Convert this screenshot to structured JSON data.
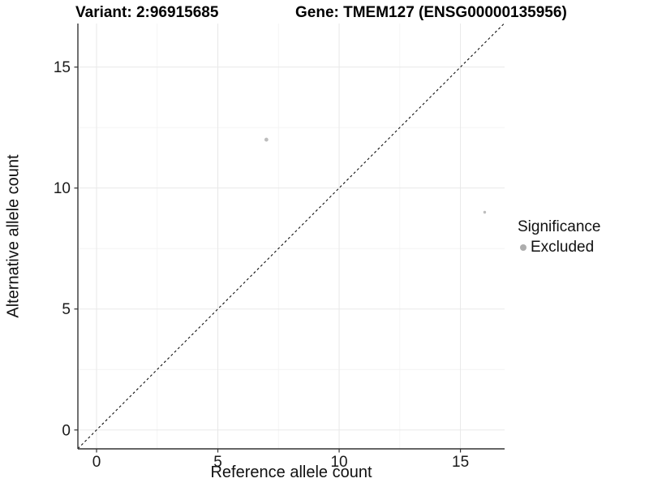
{
  "chart_data": {
    "type": "scatter",
    "title_left": "Variant: 2:96915685",
    "title_right": "Gene: TMEM127 (ENSG00000135956)",
    "xlabel": "Reference allele count",
    "ylabel": "Alternative allele count",
    "xlim": [
      -0.77,
      16.82
    ],
    "ylim": [
      -0.78,
      16.8
    ],
    "x_major_ticks": [
      0,
      5,
      10,
      15
    ],
    "y_major_ticks": [
      0,
      5,
      10,
      15
    ],
    "x_minor_ticks": [
      2.5,
      7.5,
      12.5
    ],
    "y_minor_ticks": [
      2.5,
      7.5,
      12.5
    ],
    "grid": true,
    "identity_line": {
      "type": "dashed",
      "from": "corner-to-corner",
      "equation": "y = x"
    },
    "series": [
      {
        "name": "Excluded",
        "color": "#bdbdbd",
        "points": [
          {
            "x": 7,
            "y": 12,
            "r": 2.4
          },
          {
            "x": 16,
            "y": 9,
            "r": 1.7
          }
        ]
      }
    ],
    "legend": {
      "position": "right",
      "title": "Significance",
      "entries": [
        {
          "label": "Excluded",
          "color": "#adadad"
        }
      ]
    },
    "colors": {
      "point": "#bdbdbd",
      "grid_major": "#e8e8e8",
      "grid_minor": "#f4f4f4",
      "axis_line": "#333333",
      "tick_text": "#1a1a1a",
      "identity_line": "#111111",
      "background": "#ffffff"
    }
  }
}
